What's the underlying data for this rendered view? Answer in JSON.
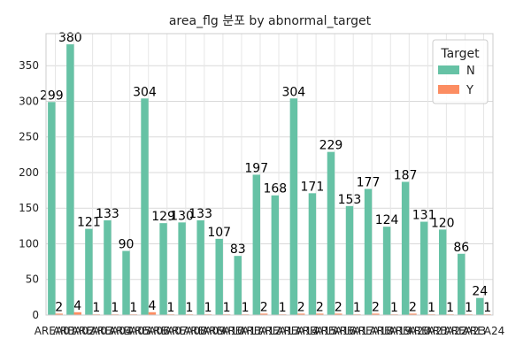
{
  "chart_data": {
    "type": "bar",
    "title": "area_flg 분포 by abnormal_target",
    "xlabel": "",
    "ylabel": "",
    "ylim": [
      0,
      395
    ],
    "yticks": [
      0,
      50,
      100,
      150,
      200,
      250,
      300,
      350
    ],
    "grid": true,
    "legend": {
      "title": "Target",
      "placement": "top-right"
    },
    "colors": {
      "N": "#66c2a5",
      "Y": "#fc8d62"
    },
    "categories": [
      "AREA01",
      "AREA02",
      "AREA03",
      "AREA04",
      "AREA05",
      "AREA06",
      "AREA07",
      "AREA08",
      "AREA09",
      "AREA10",
      "AREA11",
      "AREA12",
      "AREA13",
      "AREA14",
      "AREA15",
      "AREA16",
      "AREA17",
      "AREA18",
      "AREA19",
      "AREA20",
      "AREA21",
      "AREA22",
      "AREA23",
      "AREA24"
    ],
    "series": [
      {
        "name": "N",
        "values": [
          299,
          380,
          121,
          133,
          90,
          304,
          129,
          130,
          133,
          107,
          83,
          197,
          168,
          304,
          171,
          229,
          153,
          177,
          124,
          187,
          131,
          120,
          86,
          24
        ]
      },
      {
        "name": "Y",
        "values": [
          2,
          4,
          1,
          1,
          1,
          4,
          1,
          1,
          1,
          1,
          1,
          2,
          1,
          2,
          2,
          2,
          1,
          2,
          1,
          2,
          1,
          1,
          1,
          1
        ]
      }
    ]
  }
}
